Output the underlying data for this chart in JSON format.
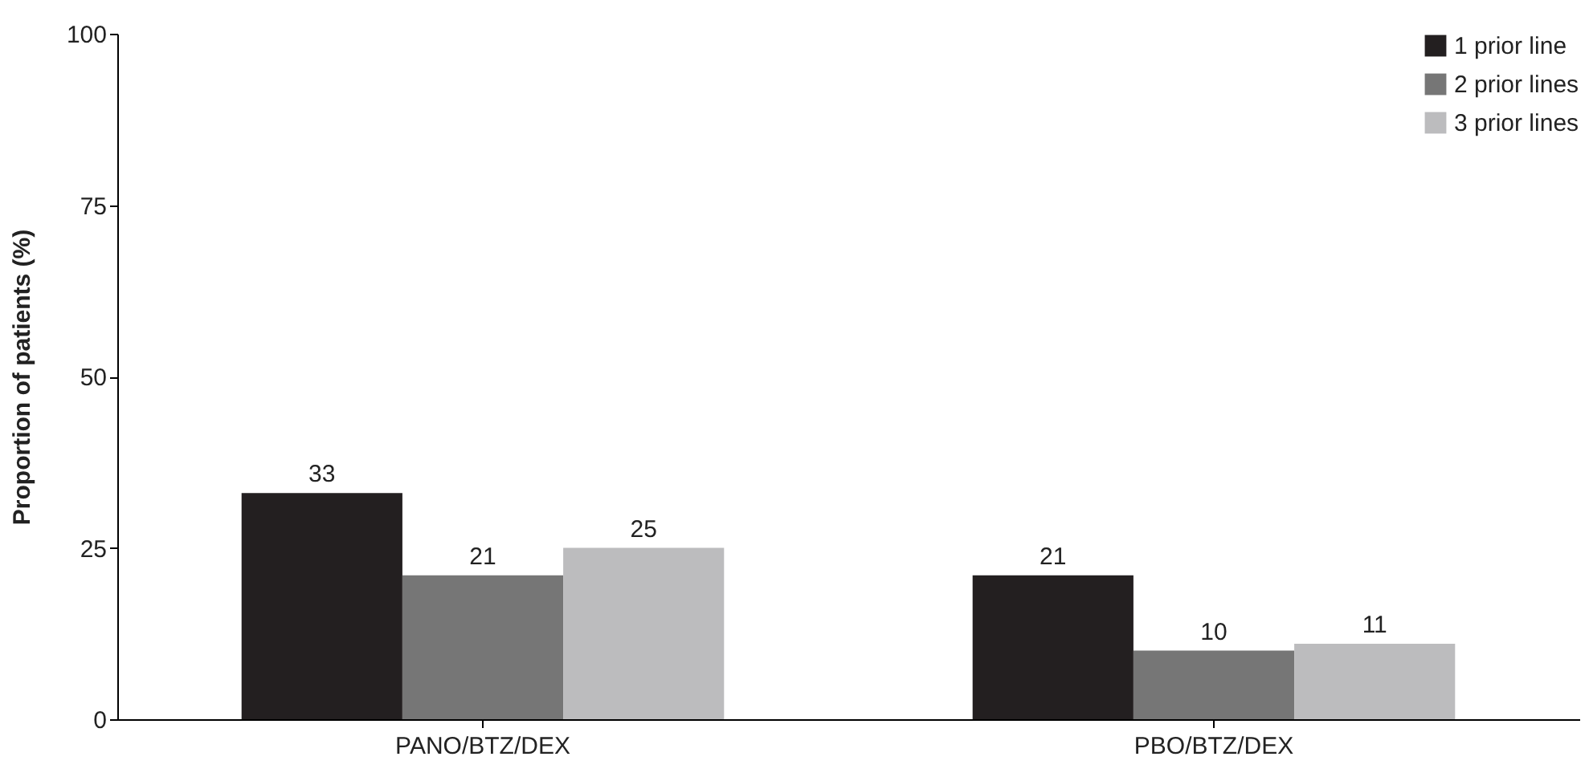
{
  "chart_data": {
    "type": "bar",
    "ylabel": "Proportion of patients (%)",
    "categories": [
      "PANO/BTZ/DEX",
      "PBO/BTZ/DEX"
    ],
    "series": [
      {
        "name": "1 prior line",
        "color": "#231f20",
        "values": [
          33,
          21
        ]
      },
      {
        "name": "2 prior lines",
        "color": "#767676",
        "values": [
          21,
          10
        ]
      },
      {
        "name": "3 prior lines",
        "color": "#bcbcbe",
        "values": [
          25,
          11
        ]
      }
    ],
    "ylim": [
      0,
      100
    ],
    "yticks": [
      0,
      25,
      50,
      75,
      100
    ],
    "grid": false,
    "legend": "top right",
    "data_labels": true
  }
}
